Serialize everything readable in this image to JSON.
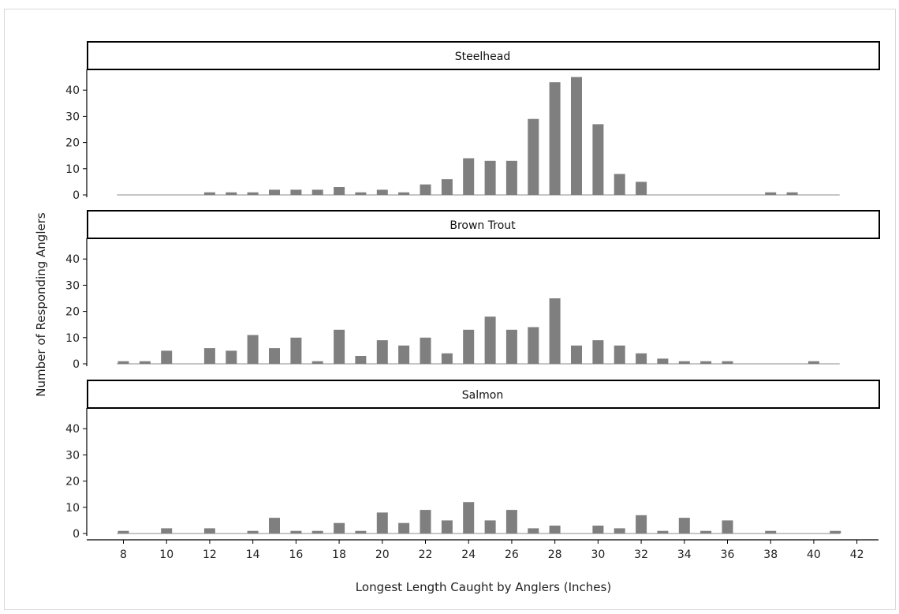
{
  "chart_data": {
    "type": "bar",
    "xlabel": "Longest Length Caught by Anglers (Inches)",
    "ylabel": "Number of Responding Anglers",
    "xlim": [
      6.3,
      43
    ],
    "ylim": [
      0,
      47
    ],
    "x_ticks": [
      8,
      10,
      12,
      14,
      16,
      18,
      20,
      22,
      24,
      26,
      28,
      30,
      32,
      34,
      36,
      38,
      40,
      42
    ],
    "y_ticks": [
      0,
      10,
      20,
      30,
      40
    ],
    "bar_color": "#7f7f7f",
    "x": [
      8,
      9,
      10,
      11,
      12,
      13,
      14,
      15,
      16,
      17,
      18,
      19,
      20,
      21,
      22,
      23,
      24,
      25,
      26,
      27,
      28,
      29,
      30,
      31,
      32,
      33,
      34,
      35,
      36,
      37,
      38,
      39,
      40,
      41
    ],
    "panels": [
      {
        "name": "Steelhead",
        "values": [
          0,
          0,
          0,
          0,
          1,
          1,
          1,
          2,
          2,
          2,
          3,
          1,
          2,
          1,
          4,
          6,
          14,
          13,
          13,
          29,
          43,
          45,
          27,
          8,
          5,
          0,
          0,
          0,
          0,
          0,
          1,
          1,
          0,
          0
        ]
      },
      {
        "name": "Brown Trout",
        "values": [
          1,
          1,
          5,
          0,
          6,
          5,
          11,
          6,
          10,
          1,
          13,
          3,
          9,
          7,
          10,
          4,
          13,
          18,
          13,
          14,
          25,
          7,
          9,
          7,
          4,
          2,
          1,
          1,
          1,
          0,
          0,
          0,
          1,
          0
        ]
      },
      {
        "name": "Salmon",
        "values": [
          1,
          0,
          2,
          0,
          2,
          0,
          1,
          6,
          1,
          1,
          4,
          1,
          8,
          4,
          9,
          5,
          12,
          5,
          9,
          2,
          3,
          0,
          3,
          2,
          7,
          1,
          6,
          1,
          5,
          0,
          1,
          0,
          0,
          1
        ]
      }
    ]
  }
}
